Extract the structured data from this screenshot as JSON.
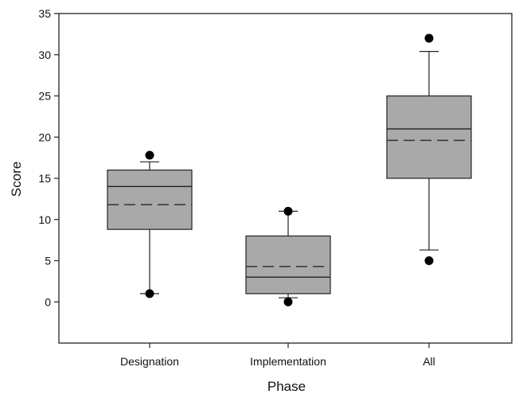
{
  "chart_data": {
    "type": "box",
    "title": "",
    "xlabel": "Phase",
    "ylabel": "Score",
    "categories": [
      "Designation",
      "Implementation",
      "All"
    ],
    "ylim": [
      -5,
      35
    ],
    "y_ticks": [
      0,
      5,
      10,
      15,
      20,
      25,
      30,
      35
    ],
    "boxes": [
      {
        "category": "Designation",
        "q1": 8.8,
        "median": 14,
        "mean": 11.8,
        "q3": 16,
        "whisker_low": 1,
        "whisker_high": 17,
        "outliers": [
          1,
          17.8
        ]
      },
      {
        "category": "Implementation",
        "q1": 1,
        "median": 3,
        "mean": 4.3,
        "q3": 8,
        "whisker_low": 0.5,
        "whisker_high": 11,
        "outliers": [
          0,
          11
        ]
      },
      {
        "category": "All",
        "q1": 15,
        "median": 21,
        "mean": 19.6,
        "q3": 25,
        "whisker_low": 6.3,
        "whisker_high": 30.4,
        "outliers": [
          5,
          32
        ]
      }
    ],
    "colors": {
      "box_fill": "#a9a9a9",
      "stroke": "#222222",
      "outlier": "#000000"
    }
  }
}
